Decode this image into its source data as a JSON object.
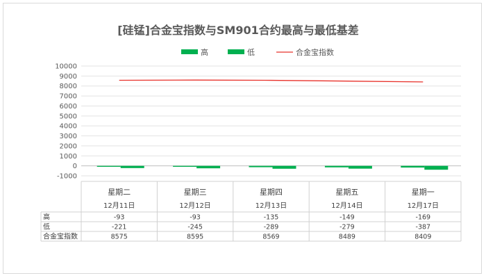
{
  "chart_data": {
    "type": "bar",
    "title": "[硅锰]合金宝指数与SM901合约最高与最低基差",
    "categories": [
      "星期二",
      "星期三",
      "星期四",
      "星期五",
      "星期一"
    ],
    "dates": [
      "12月11日",
      "12月12日",
      "12月13日",
      "12月14日",
      "12月17日"
    ],
    "series": [
      {
        "name": "高",
        "kind": "bar",
        "color": "#00b050",
        "values": [
          -93,
          -93,
          -135,
          -149,
          -169
        ]
      },
      {
        "name": "低",
        "kind": "bar",
        "color": "#00b050",
        "values": [
          -221,
          -245,
          -289,
          -279,
          -387
        ]
      },
      {
        "name": "合金宝指数",
        "kind": "line",
        "color": "#e8312a",
        "values": [
          8575,
          8595,
          8569,
          8489,
          8409
        ]
      }
    ],
    "ylim": [
      -1000,
      10000
    ],
    "yticks": [
      -1000,
      0,
      1000,
      2000,
      3000,
      4000,
      5000,
      6000,
      7000,
      8000,
      9000,
      10000
    ],
    "grid": true,
    "legend_position": "top"
  }
}
